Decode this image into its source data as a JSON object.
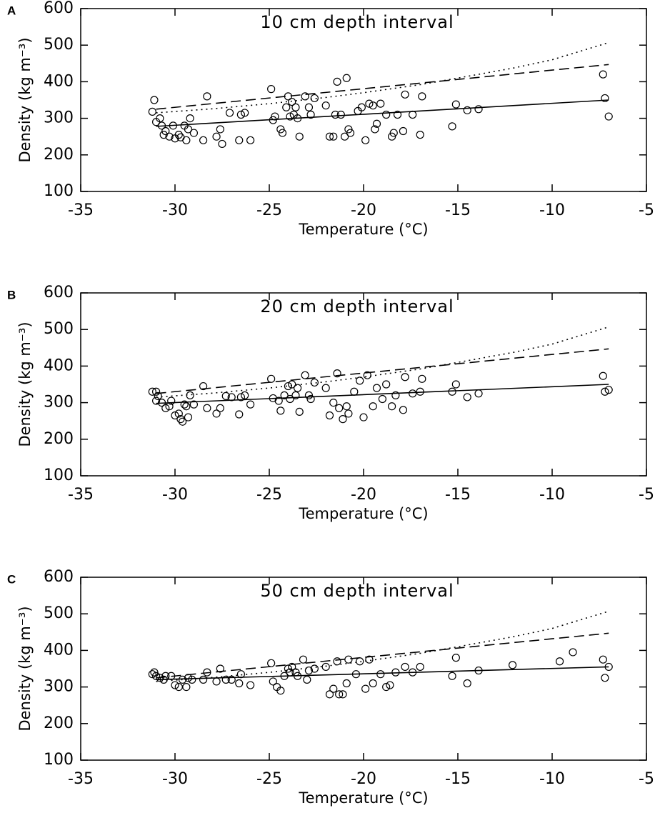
{
  "chart_data": [
    {
      "type": "scatter",
      "panel_label": "A",
      "title": "10 cm depth interval",
      "xlabel": "Temperature (°C)",
      "ylabel": "Density (kg m⁻³)",
      "xlim": [
        -35,
        -5
      ],
      "ylim": [
        100,
        600
      ],
      "xticks": [
        -35,
        -30,
        -25,
        -20,
        -15,
        -10,
        -5
      ],
      "yticks": [
        100,
        200,
        300,
        400,
        500,
        600
      ],
      "series": [
        {
          "mode": "markers",
          "color": "#000000",
          "x": [
            -31.1,
            -31.2,
            -31,
            -30.8,
            -30.7,
            -30.6,
            -30.5,
            -30.3,
            -30.1,
            -30,
            -29.8,
            -29.7,
            -29.5,
            -29.4,
            -29.3,
            -29.2,
            -29,
            -28.5,
            -28.3,
            -27.8,
            -27.6,
            -27.5,
            -27.1,
            -26.6,
            -26.5,
            -26.3,
            -26,
            -24.9,
            -24.8,
            -24.7,
            -24.4,
            -24.3,
            -24.1,
            -24,
            -23.9,
            -23.8,
            -23.7,
            -23.6,
            -23.5,
            -23.4,
            -23.1,
            -22.9,
            -22.8,
            -22.6,
            -22,
            -21.8,
            -21.6,
            -21.5,
            -21.4,
            -21.2,
            -21,
            -20.9,
            -20.8,
            -20.7,
            -20.3,
            -20.1,
            -19.9,
            -19.7,
            -19.5,
            -19.4,
            -19.3,
            -19.1,
            -18.8,
            -18.5,
            -18.4,
            -18.2,
            -17.9,
            -17.8,
            -17.4,
            -17,
            -16.9,
            -15.3,
            -15.1,
            -14.5,
            -13.9,
            -7.3,
            -7.2,
            -7
          ],
          "values": [
            350,
            318,
            290,
            300,
            280,
            255,
            265,
            250,
            280,
            245,
            255,
            248,
            280,
            240,
            270,
            300,
            260,
            240,
            360,
            250,
            270,
            230,
            315,
            240,
            310,
            315,
            240,
            380,
            295,
            305,
            270,
            260,
            330,
            360,
            305,
            345,
            310,
            330,
            300,
            250,
            360,
            330,
            310,
            355,
            335,
            250,
            250,
            310,
            400,
            310,
            250,
            410,
            270,
            260,
            320,
            330,
            240,
            340,
            335,
            270,
            285,
            340,
            310,
            250,
            260,
            310,
            265,
            365,
            310,
            255,
            360,
            278,
            338,
            322,
            325,
            420,
            355,
            305
          ]
        },
        {
          "mode": "line",
          "dash": "solid",
          "color": "#000000",
          "x": [
            -31,
            -7
          ],
          "values": [
            278,
            350
          ]
        },
        {
          "mode": "line",
          "dash": "dashed",
          "color": "#000000",
          "x": [
            -31,
            -7
          ],
          "values": [
            325,
            447
          ]
        },
        {
          "mode": "line",
          "dash": "dotted",
          "color": "#000000",
          "x": [
            -31,
            -28,
            -25,
            -22,
            -20,
            -17,
            -15,
            -12,
            -10,
            -7
          ],
          "values": [
            315,
            326,
            340,
            357,
            370,
            392,
            410,
            438,
            460,
            507
          ]
        }
      ]
    },
    {
      "type": "scatter",
      "panel_label": "B",
      "title": "20 cm depth interval",
      "xlabel": "Temperature (°C)",
      "ylabel": "Density (kg m⁻³)",
      "xlim": [
        -35,
        -5
      ],
      "ylim": [
        100,
        600
      ],
      "xticks": [
        -35,
        -30,
        -25,
        -20,
        -15,
        -10,
        -5
      ],
      "yticks": [
        100,
        200,
        300,
        400,
        500,
        600
      ],
      "series": [
        {
          "mode": "markers",
          "color": "#000000",
          "x": [
            -31.2,
            -31,
            -31,
            -30.9,
            -30.7,
            -30.5,
            -30.3,
            -30.2,
            -30,
            -29.8,
            -29.7,
            -29.6,
            -29.5,
            -29.4,
            -29.3,
            -29.2,
            -29,
            -28.5,
            -28.3,
            -27.8,
            -27.6,
            -27.3,
            -27,
            -26.6,
            -26.5,
            -26.3,
            -26,
            -24.9,
            -24.8,
            -24.5,
            -24.4,
            -24.2,
            -24,
            -23.9,
            -23.8,
            -23.6,
            -23.5,
            -23.4,
            -23.1,
            -22.9,
            -22.8,
            -22.6,
            -22,
            -21.8,
            -21.6,
            -21.4,
            -21.3,
            -21.1,
            -20.9,
            -20.8,
            -20.5,
            -20.2,
            -20,
            -19.8,
            -19.5,
            -19.3,
            -19,
            -18.8,
            -18.5,
            -18.3,
            -17.9,
            -17.8,
            -17.4,
            -17,
            -16.9,
            -15.3,
            -15.1,
            -14.5,
            -13.9,
            -7.3,
            -7.2,
            -7
          ],
          "values": [
            330,
            330,
            305,
            318,
            300,
            285,
            290,
            305,
            265,
            270,
            255,
            248,
            295,
            290,
            260,
            320,
            295,
            345,
            285,
            270,
            285,
            318,
            315,
            268,
            315,
            320,
            295,
            365,
            312,
            305,
            278,
            320,
            345,
            310,
            350,
            320,
            340,
            275,
            375,
            320,
            310,
            355,
            340,
            265,
            300,
            380,
            285,
            255,
            290,
            270,
            330,
            360,
            260,
            375,
            290,
            340,
            310,
            350,
            290,
            320,
            280,
            370,
            325,
            330,
            365,
            330,
            350,
            315,
            325,
            373,
            330,
            335
          ]
        },
        {
          "mode": "line",
          "dash": "solid",
          "color": "#000000",
          "x": [
            -31,
            -7
          ],
          "values": [
            298,
            350
          ]
        },
        {
          "mode": "line",
          "dash": "dashed",
          "color": "#000000",
          "x": [
            -31,
            -7
          ],
          "values": [
            325,
            447
          ]
        },
        {
          "mode": "line",
          "dash": "dotted",
          "color": "#000000",
          "x": [
            -31,
            -28,
            -25,
            -22,
            -20,
            -17,
            -15,
            -12,
            -10,
            -7
          ],
          "values": [
            315,
            326,
            340,
            357,
            370,
            392,
            410,
            438,
            460,
            507
          ]
        }
      ]
    },
    {
      "type": "scatter",
      "panel_label": "C",
      "title": "50 cm depth interval",
      "xlabel": "Temperature (°C)",
      "ylabel": "Density (kg m⁻³)",
      "xlim": [
        -35,
        -5
      ],
      "ylim": [
        100,
        600
      ],
      "xticks": [
        -35,
        -30,
        -25,
        -20,
        -15,
        -10,
        -5
      ],
      "yticks": [
        100,
        200,
        300,
        400,
        500,
        600
      ],
      "series": [
        {
          "mode": "markers",
          "color": "#000000",
          "x": [
            -31.2,
            -31.1,
            -31,
            -30.8,
            -30.6,
            -30.5,
            -30.2,
            -30,
            -29.8,
            -29.6,
            -29.4,
            -29.3,
            -29.1,
            -28.5,
            -28.3,
            -27.8,
            -27.6,
            -27.3,
            -27,
            -26.6,
            -26.5,
            -26,
            -24.9,
            -24.8,
            -24.6,
            -24.4,
            -24.2,
            -24,
            -23.9,
            -23.8,
            -23.6,
            -23.5,
            -23.2,
            -23,
            -22.9,
            -22.6,
            -22,
            -21.8,
            -21.6,
            -21.4,
            -21.3,
            -21.1,
            -20.9,
            -20.8,
            -20.4,
            -20.2,
            -19.9,
            -19.7,
            -19.5,
            -19.1,
            -18.8,
            -18.6,
            -18.3,
            -17.8,
            -17.4,
            -17,
            -15.3,
            -15.1,
            -14.5,
            -13.9,
            -12.1,
            -9.6,
            -8.9,
            -7.3,
            -7.2,
            -7
          ],
          "values": [
            335,
            340,
            330,
            325,
            320,
            330,
            330,
            305,
            300,
            320,
            300,
            325,
            320,
            320,
            340,
            315,
            350,
            320,
            320,
            310,
            335,
            305,
            365,
            315,
            300,
            290,
            330,
            350,
            340,
            355,
            340,
            330,
            375,
            320,
            345,
            350,
            355,
            280,
            295,
            370,
            280,
            280,
            310,
            375,
            335,
            370,
            295,
            375,
            310,
            335,
            300,
            305,
            340,
            355,
            340,
            355,
            330,
            380,
            310,
            345,
            360,
            370,
            395,
            375,
            325,
            355
          ]
        },
        {
          "mode": "line",
          "dash": "solid",
          "color": "#000000",
          "x": [
            -31,
            -7
          ],
          "values": [
            320,
            355
          ]
        },
        {
          "mode": "line",
          "dash": "dashed",
          "color": "#000000",
          "x": [
            -31,
            -7
          ],
          "values": [
            325,
            447
          ]
        },
        {
          "mode": "line",
          "dash": "dotted",
          "color": "#000000",
          "x": [
            -31,
            -28,
            -25,
            -22,
            -20,
            -17,
            -15,
            -12,
            -10,
            -7
          ],
          "values": [
            315,
            326,
            340,
            357,
            370,
            392,
            410,
            438,
            460,
            507
          ]
        }
      ]
    }
  ]
}
